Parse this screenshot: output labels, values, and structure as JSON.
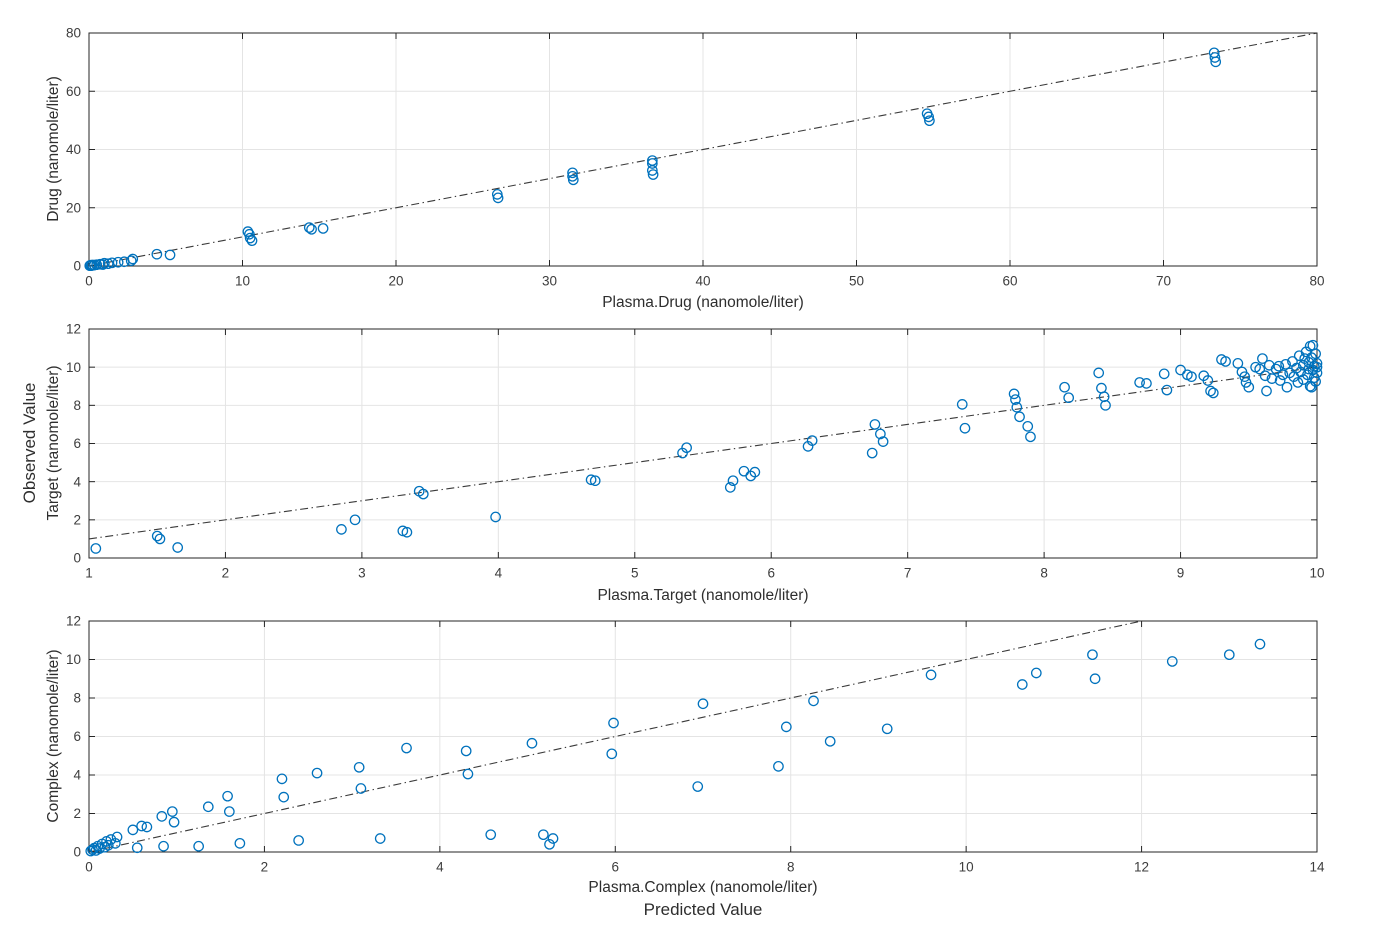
{
  "figure": {
    "background": "#ffffff",
    "marker_color": "#0072BD",
    "line_color": "#3a3a3a",
    "grid_color": "#e4e4e4",
    "axis_color": "#262626",
    "tick_label_color": "#3d3d3d",
    "shared_ylabel": "Observed Value",
    "shared_xlabel": "Predicted Value"
  },
  "chart_data": [
    {
      "id": "drug",
      "type": "scatter",
      "xlabel": "Plasma.Drug (nanomole/liter)",
      "ylabel": "Drug (nanomole/liter)",
      "xlim": [
        0,
        80
      ],
      "ylim": [
        0,
        80
      ],
      "xticks": [
        0,
        10,
        20,
        30,
        40,
        50,
        60,
        70,
        80
      ],
      "yticks": [
        0,
        20,
        40,
        60,
        80
      ],
      "grid": true,
      "legend": "none",
      "reference_line": {
        "style": "dash-dot",
        "from": [
          0,
          0
        ],
        "to": [
          80,
          80
        ]
      },
      "points": [
        [
          0.05,
          0.1
        ],
        [
          0.1,
          0.25
        ],
        [
          0.18,
          0.12
        ],
        [
          0.22,
          0.35
        ],
        [
          0.35,
          0.3
        ],
        [
          0.5,
          0.45
        ],
        [
          0.72,
          0.6
        ],
        [
          0.9,
          0.5
        ],
        [
          1.0,
          0.95
        ],
        [
          1.25,
          0.8
        ],
        [
          1.5,
          1.1
        ],
        [
          1.9,
          1.3
        ],
        [
          2.3,
          1.45
        ],
        [
          2.75,
          1.8
        ],
        [
          2.85,
          2.4
        ],
        [
          4.42,
          4.05
        ],
        [
          5.28,
          3.8
        ],
        [
          10.35,
          11.8
        ],
        [
          10.45,
          10.9
        ],
        [
          10.5,
          9.6
        ],
        [
          10.62,
          8.7
        ],
        [
          14.35,
          13.2
        ],
        [
          14.5,
          12.6
        ],
        [
          15.25,
          12.9
        ],
        [
          26.6,
          24.6
        ],
        [
          26.65,
          23.4
        ],
        [
          31.5,
          32.0
        ],
        [
          31.5,
          30.8
        ],
        [
          31.55,
          29.6
        ],
        [
          36.7,
          36.2
        ],
        [
          36.7,
          35.2
        ],
        [
          36.7,
          32.8
        ],
        [
          36.75,
          31.4
        ],
        [
          54.6,
          52.3
        ],
        [
          54.7,
          51.2
        ],
        [
          54.75,
          49.9
        ],
        [
          73.3,
          73.2
        ],
        [
          73.35,
          71.6
        ],
        [
          73.4,
          70.1
        ]
      ]
    },
    {
      "id": "target",
      "type": "scatter",
      "xlabel": "Plasma.Target (nanomole/liter)",
      "ylabel": "Target (nanomole/liter)",
      "xlim": [
        1,
        10
      ],
      "ylim": [
        0,
        12
      ],
      "xticks": [
        1,
        2,
        3,
        4,
        5,
        6,
        7,
        8,
        9,
        10
      ],
      "yticks": [
        0,
        2,
        4,
        6,
        8,
        10,
        12
      ],
      "grid": true,
      "legend": "none",
      "reference_line": {
        "style": "dash-dot",
        "from": [
          1,
          1
        ],
        "to": [
          10,
          10
        ]
      },
      "points": [
        [
          1.05,
          0.5
        ],
        [
          1.5,
          1.15
        ],
        [
          1.52,
          1.0
        ],
        [
          1.65,
          0.55
        ],
        [
          2.85,
          1.5
        ],
        [
          2.95,
          2.0
        ],
        [
          3.3,
          1.42
        ],
        [
          3.33,
          1.35
        ],
        [
          3.42,
          3.5
        ],
        [
          3.45,
          3.35
        ],
        [
          3.98,
          2.15
        ],
        [
          4.68,
          4.1
        ],
        [
          4.71,
          4.05
        ],
        [
          5.35,
          5.5
        ],
        [
          5.38,
          5.78
        ],
        [
          5.7,
          3.7
        ],
        [
          5.72,
          4.05
        ],
        [
          5.8,
          4.55
        ],
        [
          5.85,
          4.3
        ],
        [
          5.88,
          4.5
        ],
        [
          6.27,
          5.85
        ],
        [
          6.3,
          6.15
        ],
        [
          6.74,
          5.5
        ],
        [
          6.76,
          7.0
        ],
        [
          6.8,
          6.5
        ],
        [
          6.82,
          6.1
        ],
        [
          7.4,
          8.05
        ],
        [
          7.42,
          6.8
        ],
        [
          7.78,
          8.6
        ],
        [
          7.79,
          8.3
        ],
        [
          7.8,
          7.9
        ],
        [
          7.82,
          7.4
        ],
        [
          7.88,
          6.9
        ],
        [
          7.9,
          6.35
        ],
        [
          8.15,
          8.95
        ],
        [
          8.18,
          8.4
        ],
        [
          8.4,
          9.7
        ],
        [
          8.42,
          8.9
        ],
        [
          8.44,
          8.45
        ],
        [
          8.45,
          8.0
        ],
        [
          8.7,
          9.2
        ],
        [
          8.75,
          9.15
        ],
        [
          8.88,
          9.65
        ],
        [
          8.9,
          8.8
        ],
        [
          9.0,
          9.85
        ],
        [
          9.05,
          9.6
        ],
        [
          9.08,
          9.5
        ],
        [
          9.17,
          9.55
        ],
        [
          9.2,
          9.3
        ],
        [
          9.22,
          8.75
        ],
        [
          9.24,
          8.65
        ],
        [
          9.3,
          10.4
        ],
        [
          9.33,
          10.3
        ],
        [
          9.42,
          10.2
        ],
        [
          9.45,
          9.75
        ],
        [
          9.47,
          9.5
        ],
        [
          9.48,
          9.2
        ],
        [
          9.5,
          8.95
        ],
        [
          9.55,
          10.0
        ],
        [
          9.58,
          9.9
        ],
        [
          9.6,
          10.45
        ],
        [
          9.62,
          9.55
        ],
        [
          9.63,
          8.75
        ],
        [
          9.65,
          10.1
        ],
        [
          9.67,
          9.4
        ],
        [
          9.7,
          9.9
        ],
        [
          9.72,
          10.05
        ],
        [
          9.73,
          9.3
        ],
        [
          9.75,
          9.6
        ],
        [
          9.77,
          10.15
        ],
        [
          9.78,
          8.95
        ],
        [
          9.8,
          9.7
        ],
        [
          9.82,
          10.3
        ],
        [
          9.83,
          9.5
        ],
        [
          9.85,
          9.95
        ],
        [
          9.86,
          9.2
        ],
        [
          9.87,
          10.6
        ],
        [
          9.88,
          9.75
        ],
        [
          9.9,
          10.1
        ],
        [
          9.9,
          9.35
        ],
        [
          9.91,
          10.45
        ],
        [
          9.92,
          10.8
        ],
        [
          9.93,
          9.6
        ],
        [
          9.94,
          10.25
        ],
        [
          9.94,
          9.9
        ],
        [
          9.95,
          9.0
        ],
        [
          9.95,
          11.1
        ],
        [
          9.96,
          10.5
        ],
        [
          9.96,
          8.95
        ],
        [
          9.97,
          9.85
        ],
        [
          9.97,
          11.15
        ],
        [
          9.98,
          10.05
        ],
        [
          9.98,
          9.45
        ],
        [
          9.99,
          10.7
        ],
        [
          9.99,
          9.25
        ],
        [
          10.0,
          10.2
        ],
        [
          10.0,
          9.7
        ],
        [
          10.0,
          10.0
        ]
      ]
    },
    {
      "id": "complex",
      "type": "scatter",
      "xlabel": "Plasma.Complex (nanomole/liter)",
      "ylabel": "Complex (nanomole/liter)",
      "xlim": [
        0,
        14
      ],
      "ylim": [
        0,
        12
      ],
      "xticks": [
        0,
        2,
        4,
        6,
        8,
        10,
        12,
        14
      ],
      "yticks": [
        0,
        2,
        4,
        6,
        8,
        10,
        12
      ],
      "grid": true,
      "legend": "none",
      "reference_line": {
        "style": "dash-dot",
        "from": [
          0,
          0
        ],
        "to": [
          12,
          12
        ]
      },
      "points": [
        [
          0.02,
          0.05
        ],
        [
          0.04,
          0.12
        ],
        [
          0.06,
          0.2
        ],
        [
          0.08,
          0.08
        ],
        [
          0.1,
          0.3
        ],
        [
          0.12,
          0.18
        ],
        [
          0.15,
          0.42
        ],
        [
          0.18,
          0.25
        ],
        [
          0.2,
          0.55
        ],
        [
          0.22,
          0.35
        ],
        [
          0.25,
          0.65
        ],
        [
          0.3,
          0.45
        ],
        [
          0.32,
          0.78
        ],
        [
          0.5,
          1.15
        ],
        [
          0.55,
          0.22
        ],
        [
          0.6,
          1.35
        ],
        [
          0.66,
          1.3
        ],
        [
          0.83,
          1.85
        ],
        [
          0.85,
          0.3
        ],
        [
          0.95,
          2.1
        ],
        [
          0.97,
          1.55
        ],
        [
          1.25,
          0.3
        ],
        [
          1.36,
          2.35
        ],
        [
          1.58,
          2.9
        ],
        [
          1.6,
          2.1
        ],
        [
          1.72,
          0.45
        ],
        [
          2.2,
          3.8
        ],
        [
          2.22,
          2.85
        ],
        [
          2.39,
          0.6
        ],
        [
          2.6,
          4.1
        ],
        [
          3.08,
          4.4
        ],
        [
          3.1,
          3.3
        ],
        [
          3.32,
          0.7
        ],
        [
          3.62,
          5.4
        ],
        [
          4.3,
          5.25
        ],
        [
          4.32,
          4.05
        ],
        [
          4.58,
          0.9
        ],
        [
          5.05,
          5.65
        ],
        [
          5.18,
          0.9
        ],
        [
          5.25,
          0.4
        ],
        [
          5.29,
          0.7
        ],
        [
          5.96,
          5.1
        ],
        [
          5.98,
          6.7
        ],
        [
          6.94,
          3.4
        ],
        [
          7.0,
          7.7
        ],
        [
          7.86,
          4.45
        ],
        [
          7.95,
          6.5
        ],
        [
          8.26,
          7.85
        ],
        [
          8.45,
          5.75
        ],
        [
          9.1,
          6.4
        ],
        [
          9.6,
          9.2
        ],
        [
          10.64,
          8.7
        ],
        [
          10.8,
          9.3
        ],
        [
          11.44,
          10.25
        ],
        [
          11.47,
          9.0
        ],
        [
          12.35,
          9.9
        ],
        [
          13.0,
          10.25
        ],
        [
          13.35,
          10.8
        ]
      ]
    }
  ]
}
